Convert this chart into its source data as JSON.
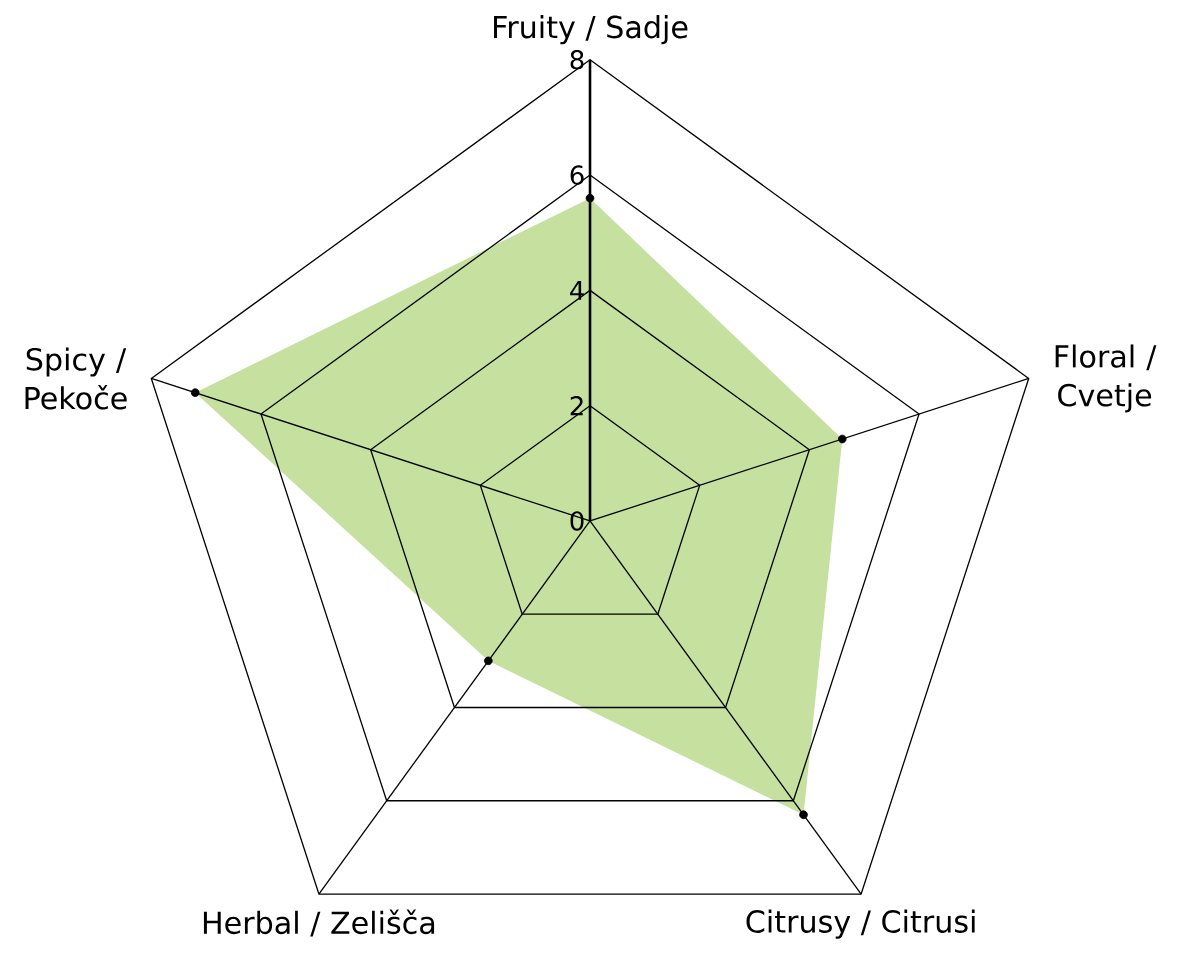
{
  "chart_data": {
    "type": "radar",
    "categories": [
      "Fruity / Sadje",
      "Floral / Cvetje",
      "Citrusy / Citrusi",
      "Herbal / Zelišča",
      "Spicy / Pekoče"
    ],
    "series": [
      {
        "color": "#c5e09f",
        "values": [
          5.6,
          4.6,
          6.3,
          3.0,
          7.2
        ]
      }
    ],
    "ylim": [
      0,
      8
    ],
    "yticks": [
      0,
      2,
      4,
      6,
      8
    ],
    "grid": true,
    "marker": "circle"
  }
}
